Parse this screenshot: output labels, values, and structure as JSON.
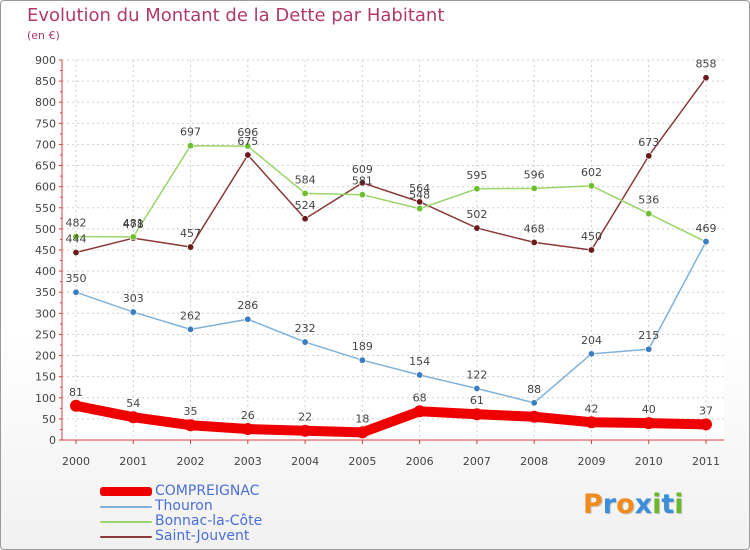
{
  "header": {
    "title": "Evolution du Montant de la Dette par Habitant",
    "subtitle": "(en €)"
  },
  "brand": {
    "letters": [
      "P",
      "r",
      "o",
      "x",
      "i",
      "t",
      "i"
    ],
    "colors": [
      "#f08a1c",
      "#3a8fd8",
      "#f08a1c",
      "#3a8fd8",
      "#6cb82c",
      "#3a8fd8",
      "#6cb82c"
    ]
  },
  "chart_data": {
    "type": "line",
    "title": "Evolution du Montant de la Dette par Habitant",
    "subtitle": "(en €)",
    "xlabel": "",
    "ylabel": "",
    "categories": [
      "2000",
      "2001",
      "2002",
      "2003",
      "2004",
      "2005",
      "2006",
      "2007",
      "2008",
      "2009",
      "2010",
      "2011"
    ],
    "ylim": [
      0,
      900
    ],
    "yticks": [
      0,
      50,
      100,
      150,
      200,
      250,
      300,
      350,
      400,
      450,
      500,
      550,
      600,
      650,
      700,
      750,
      800,
      850,
      900
    ],
    "grid": true,
    "legend_position": "bottom-left",
    "series": [
      {
        "name": "COMPREIGNAC",
        "color": "#ee0000",
        "point_color": "#ee0000",
        "values": [
          81,
          54,
          35,
          26,
          22,
          18,
          68,
          61,
          55,
          42,
          40,
          37
        ],
        "labels": [
          "81",
          "54",
          "35",
          "26",
          "22",
          "18",
          "68",
          "61",
          "",
          "42",
          "40",
          "37"
        ]
      },
      {
        "name": "Thouron",
        "color": "#7fb2da",
        "point_color": "#3a7dc2",
        "values": [
          350,
          303,
          262,
          286,
          232,
          189,
          154,
          122,
          88,
          204,
          215,
          470
        ],
        "labels": [
          "350",
          "303",
          "262",
          "286",
          "232",
          "189",
          "154",
          "122",
          "88",
          "204",
          "215",
          ""
        ]
      },
      {
        "name": "Bonnac-la-Côte",
        "color": "#9ad46a",
        "point_color": "#6cc030",
        "values": [
          482,
          481,
          697,
          696,
          584,
          581,
          548,
          595,
          596,
          602,
          536,
          469
        ],
        "labels": [
          "482",
          "481",
          "697",
          "696",
          "584",
          "581",
          "548",
          "595",
          "596",
          "602",
          "536",
          "469"
        ]
      },
      {
        "name": "Saint-Jouvent",
        "color": "#8a3a3a",
        "point_color": "#6b1a1a",
        "values": [
          444,
          478,
          457,
          675,
          524,
          609,
          564,
          502,
          468,
          450,
          673,
          858
        ],
        "labels": [
          "444",
          "478",
          "457",
          "675",
          "524",
          "609",
          "564",
          "502",
          "468",
          "450",
          "673",
          "858"
        ]
      }
    ]
  }
}
